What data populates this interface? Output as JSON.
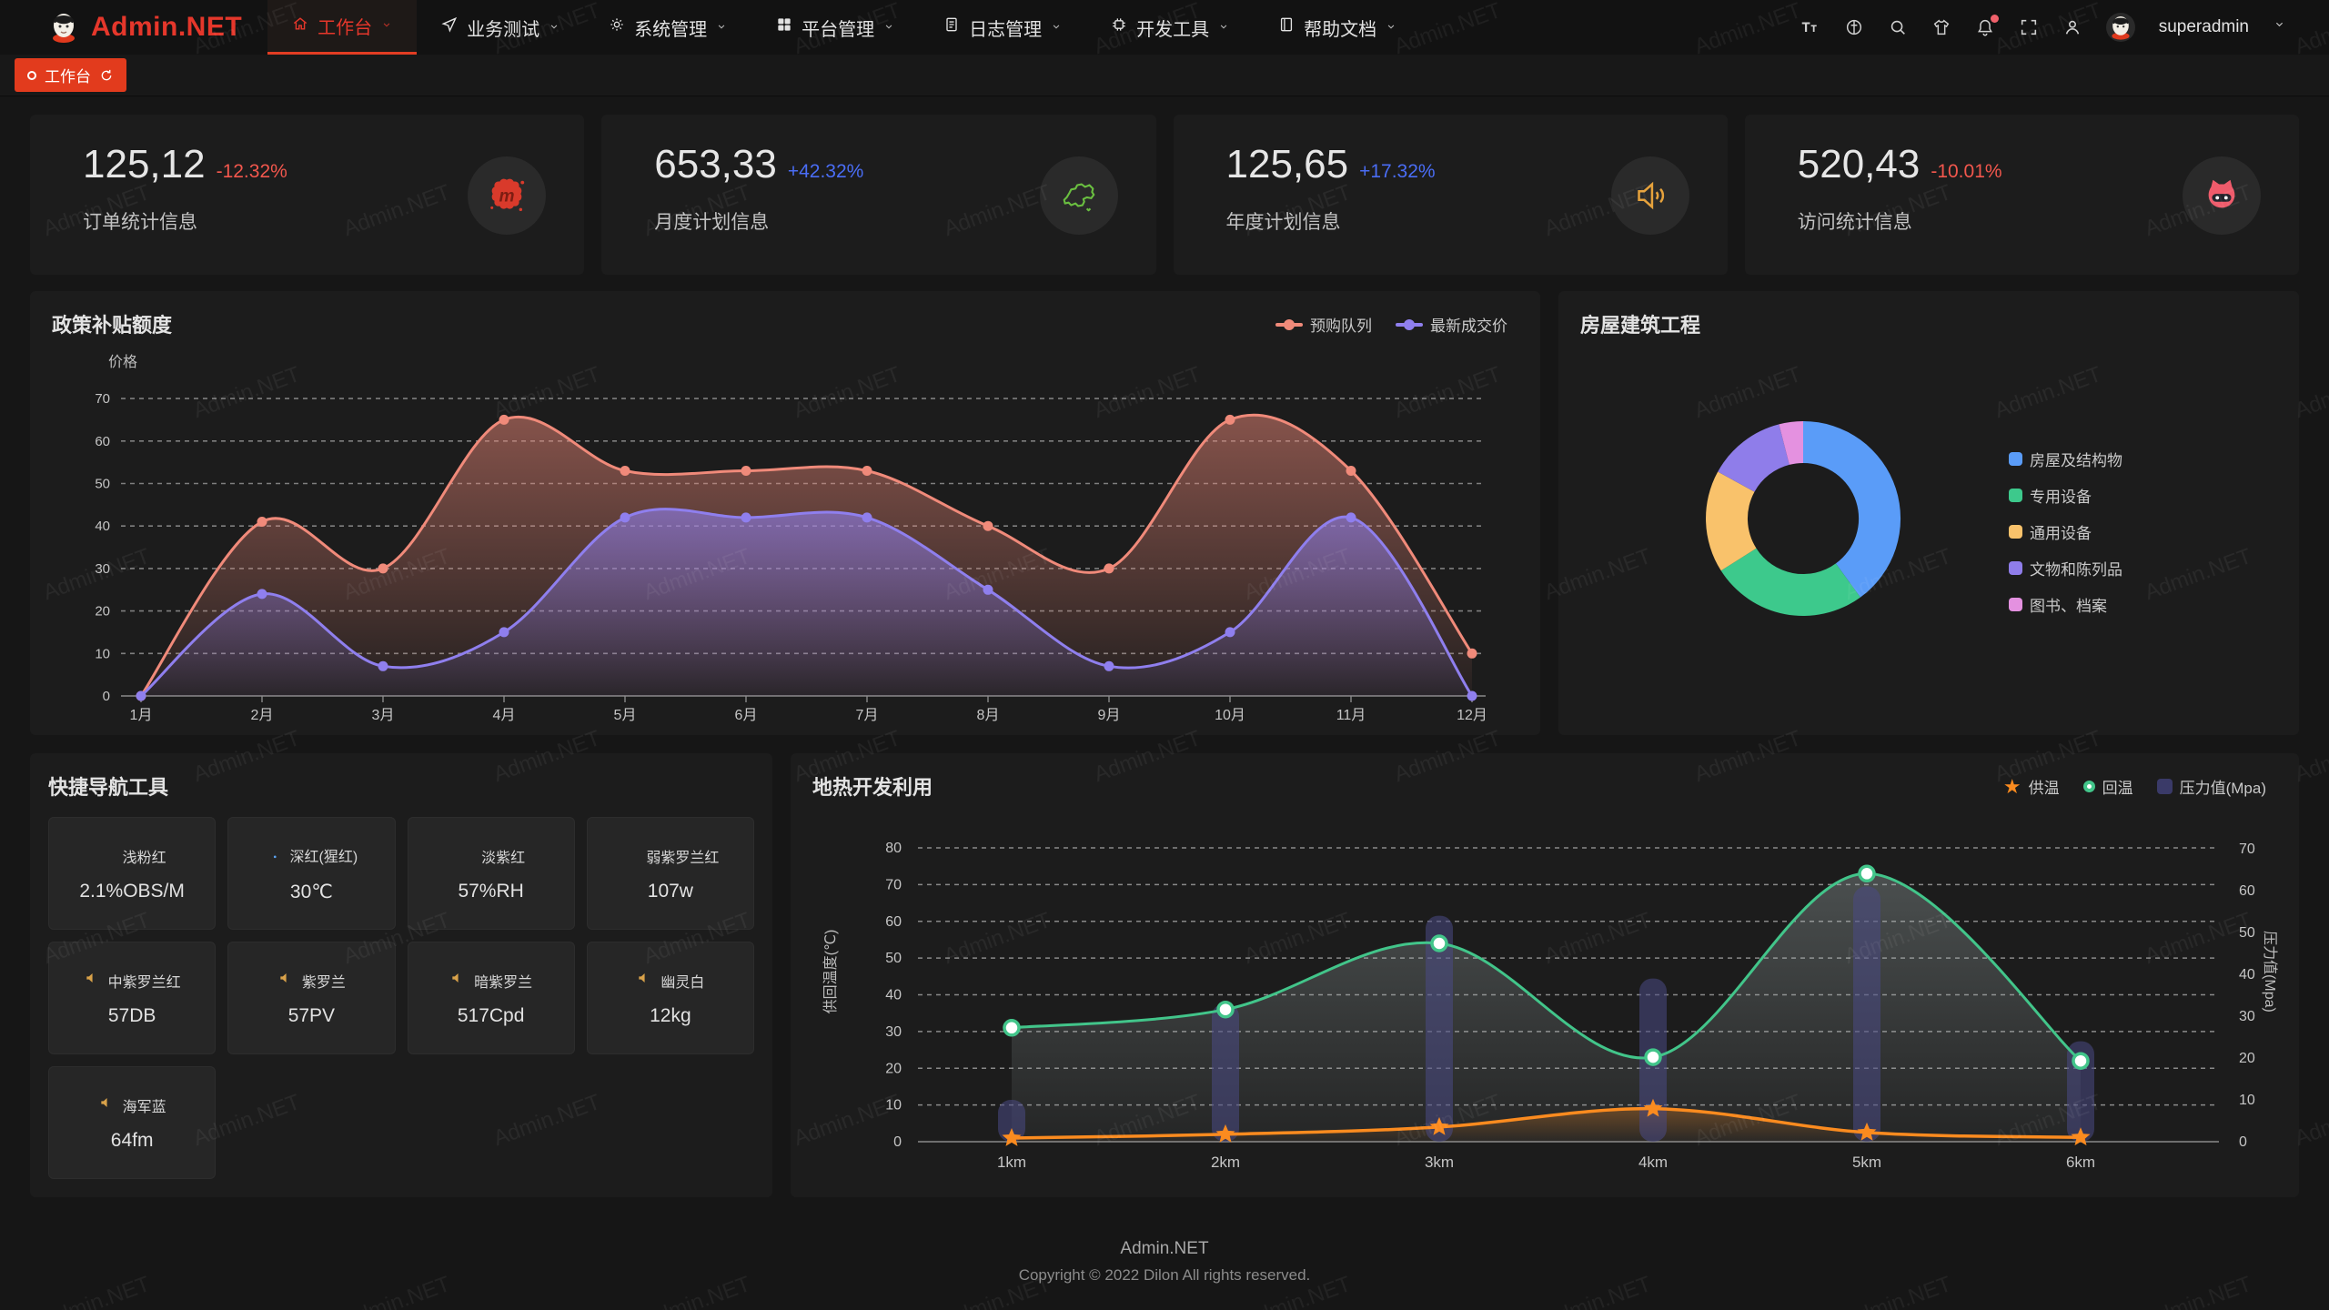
{
  "header": {
    "brand": "Admin.NET",
    "menu": [
      {
        "label": "工作台",
        "icon": "home-icon",
        "active": true
      },
      {
        "label": "业务测试",
        "icon": "navigation-icon",
        "active": false
      },
      {
        "label": "系统管理",
        "icon": "gear-icon",
        "active": false
      },
      {
        "label": "平台管理",
        "icon": "grid-icon",
        "active": false
      },
      {
        "label": "日志管理",
        "icon": "document-icon",
        "active": false
      },
      {
        "label": "开发工具",
        "icon": "chip-icon",
        "active": false
      },
      {
        "label": "帮助文档",
        "icon": "book-icon",
        "active": false
      }
    ],
    "right_icons": [
      "font-size-icon",
      "language-icon",
      "search-icon",
      "theme-icon",
      "bell-icon",
      "fullscreen-icon",
      "person-icon"
    ],
    "user": "superadmin"
  },
  "tabbar": {
    "active_tab": "工作台"
  },
  "stat_cards": [
    {
      "value": "125,12",
      "delta": "-12.32%",
      "trend": "down",
      "label": "订单统计信息",
      "icon": "meetup-splat-icon"
    },
    {
      "value": "653,33",
      "delta": "+42.32%",
      "trend": "up",
      "label": "月度计划信息",
      "icon": "china-map-icon"
    },
    {
      "value": "125,65",
      "delta": "+17.32%",
      "trend": "up",
      "label": "年度计划信息",
      "icon": "speaker-icon"
    },
    {
      "value": "520,43",
      "delta": "-10.01%",
      "trend": "down",
      "label": "访问统计信息",
      "icon": "cat-icon"
    }
  ],
  "panels": {
    "policy": {
      "title": "政策补贴额度"
    },
    "building": {
      "title": "房屋建筑工程"
    },
    "shortcuts": {
      "title": "快捷导航工具",
      "items": [
        {
          "name": "浅粉红",
          "value": "2.1%OBS/M",
          "icon": "flame-icon",
          "icon_color": "#e2504a"
        },
        {
          "name": "深红(猩红)",
          "value": "30℃",
          "icon": "thermometer-icon",
          "icon_color": "#5aa2f0"
        },
        {
          "name": "淡紫红",
          "value": "57%RH",
          "icon": "humidity-icon",
          "icon_color": "#8fc258"
        },
        {
          "name": "弱紫罗兰红",
          "value": "107w",
          "icon": "humidity-icon",
          "icon_color": "#8fc258"
        },
        {
          "name": "中紫罗兰红",
          "value": "57DB",
          "icon": "speaker-icon",
          "icon_color": "#d9a24a"
        },
        {
          "name": "紫罗兰",
          "value": "57PV",
          "icon": "speaker-icon",
          "icon_color": "#d9a24a"
        },
        {
          "name": "暗紫罗兰",
          "value": "517Cpd",
          "icon": "speaker-icon",
          "icon_color": "#d9a24a"
        },
        {
          "name": "幽灵白",
          "value": "12kg",
          "icon": "speaker-icon",
          "icon_color": "#d9a24a"
        },
        {
          "name": "海军蓝",
          "value": "64fm",
          "icon": "speaker-icon",
          "icon_color": "#d9a24a"
        }
      ]
    },
    "geothermal": {
      "title": "地热开发利用"
    }
  },
  "footer": {
    "brand": "Admin.NET",
    "copyright": "Copyright © 2022 Dilon All rights reserved."
  },
  "watermark": "Admin.NET",
  "colors": {
    "accent": "#e23b1d",
    "delta_up": "#4a6df5",
    "delta_down": "#f2574d"
  },
  "chart_data": [
    {
      "id": "policy",
      "type": "area",
      "title": "政策补贴额度",
      "ylabel": "价格",
      "categories": [
        "1月",
        "2月",
        "3月",
        "4月",
        "5月",
        "6月",
        "7月",
        "8月",
        "9月",
        "10月",
        "11月",
        "12月"
      ],
      "ylim": [
        0,
        70
      ],
      "ystep": 10,
      "grid": true,
      "legend_position": "top-right",
      "series": [
        {
          "name": "预购队列",
          "color": "#f08a7a",
          "values": [
            0,
            41,
            30,
            65,
            53,
            53,
            53,
            40,
            30,
            65,
            53,
            10
          ]
        },
        {
          "name": "最新成交价",
          "color": "#8f7fee",
          "values": [
            0,
            24,
            7,
            15,
            42,
            42,
            42,
            25,
            7,
            15,
            42,
            0
          ]
        }
      ]
    },
    {
      "id": "building",
      "type": "pie",
      "donut": true,
      "title": "房屋建筑工程",
      "legend_position": "right",
      "slices": [
        {
          "label": "房屋及结构物",
          "value": 40,
          "color": "#5a9cf8"
        },
        {
          "label": "专用设备",
          "value": 26,
          "color": "#3dc98c"
        },
        {
          "label": "通用设备",
          "value": 17,
          "color": "#f9c26b"
        },
        {
          "label": "文物和陈列品",
          "value": 13,
          "color": "#8f7dea"
        },
        {
          "label": "图书、档案",
          "value": 4,
          "color": "#e491e0"
        }
      ]
    },
    {
      "id": "geothermal",
      "type": "combo",
      "title": "地热开发利用",
      "categories": [
        "1km",
        "2km",
        "3km",
        "4km",
        "5km",
        "6km"
      ],
      "left_axis": {
        "label": "供回温度(℃)",
        "range": [
          0,
          80
        ],
        "step": 10
      },
      "right_axis": {
        "label": "压力值(Mpa)",
        "range": [
          0,
          70
        ],
        "step": 10
      },
      "series": [
        {
          "name": "供温",
          "type": "line",
          "axis": "left",
          "color": "#fb8b1f",
          "marker": "star",
          "values": [
            1,
            2,
            4,
            9,
            2.5,
            1.2
          ]
        },
        {
          "name": "回温",
          "type": "line",
          "axis": "left",
          "color": "#42c58a",
          "marker": "circle",
          "values": [
            31,
            36,
            54,
            23,
            73,
            22
          ]
        },
        {
          "name": "压力值(Mpa)",
          "type": "bar",
          "axis": "right",
          "color": "#4a4a85",
          "values": [
            10,
            33,
            54,
            39,
            61,
            24
          ]
        }
      ]
    }
  ]
}
